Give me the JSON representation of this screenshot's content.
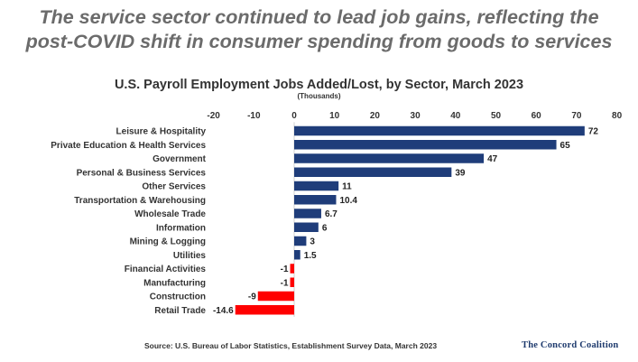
{
  "headline": {
    "line1": "The service sector continued to lead job gains, reflecting the",
    "line2": "post-COVID shift in consumer spending from goods to services"
  },
  "chart_data": {
    "type": "bar",
    "orientation": "horizontal",
    "title": "U.S. Payroll Employment Jobs Added/Lost, by Sector, March 2023",
    "subtitle": "(Thousands)",
    "xlim": [
      -20,
      80
    ],
    "x_ticks": [
      -20,
      -10,
      0,
      10,
      20,
      30,
      40,
      50,
      60,
      70,
      80
    ],
    "x_tick_position": "top",
    "grid": false,
    "categories": [
      "Leisure & Hospitality",
      "Private Education & Health Services",
      "Government",
      "Personal & Business Services",
      "Other Services",
      "Transportation & Warehousing",
      "Wholesale Trade",
      "Information",
      "Mining & Logging",
      "Utilities",
      "Financial Activities",
      "Manufacturing",
      "Construction",
      "Retail Trade"
    ],
    "values": [
      72,
      65,
      47,
      39,
      11,
      10.4,
      6.7,
      6,
      3,
      1.5,
      -1,
      -1,
      -9,
      -14.6
    ],
    "data_labels": [
      "72",
      "65",
      "47",
      "39",
      "11",
      "10.4",
      "6.7",
      "6",
      "3",
      "1.5",
      "-1",
      "-1",
      "-9",
      "-14.6"
    ],
    "colors": {
      "positive": "#1f3d7a",
      "negative": "#ff0000"
    }
  },
  "footer": {
    "source": "Source: U.S. Bureau of Labor Statistics, Establishment Survey Data, March 2023",
    "brand": "The Concord Coalition"
  }
}
